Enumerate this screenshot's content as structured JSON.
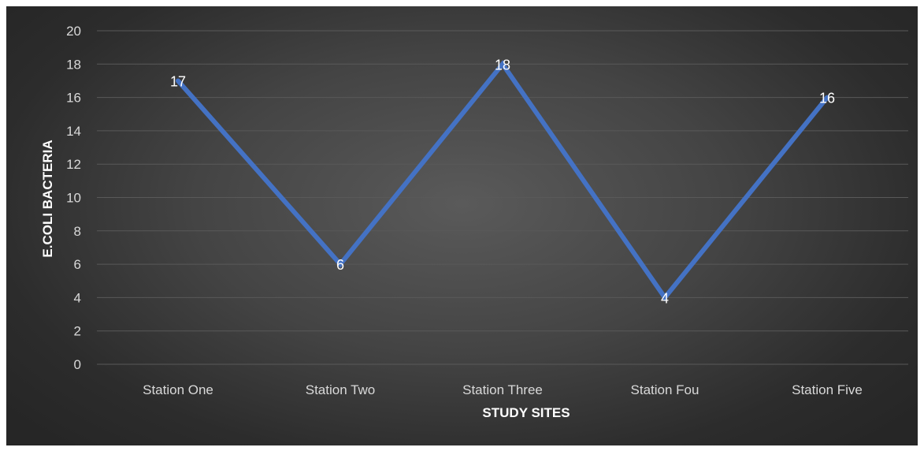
{
  "chart_data": {
    "type": "line",
    "categories": [
      "Station One",
      "Station Two",
      "Station Three",
      "Station Fou",
      "Station Five"
    ],
    "series": [
      {
        "values": [
          17,
          6,
          18,
          4,
          16
        ],
        "color": "#4472C4"
      }
    ],
    "data_labels": [
      "17",
      "6",
      "18",
      "4",
      "16"
    ],
    "xlabel": "STUDY SITES",
    "ylabel": "E.COLI BACTERIA",
    "ylim": [
      0,
      20
    ],
    "yticks": [
      "0",
      "2",
      "4",
      "6",
      "8",
      "10",
      "12",
      "14",
      "16",
      "18",
      "20"
    ],
    "grid": true,
    "legend": "none",
    "colors": {
      "background": "#3f3f3f",
      "gridline": "#595959",
      "line": "#4472C4",
      "text": "#d9d9d9"
    }
  }
}
